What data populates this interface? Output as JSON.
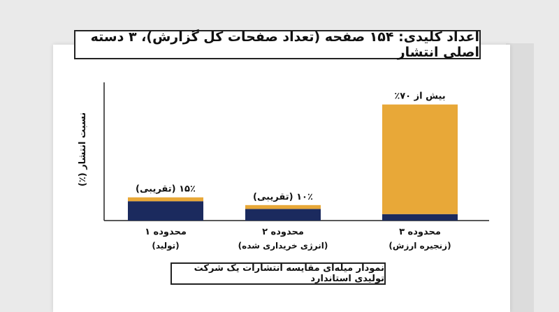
{
  "title": "اعداد کلیدی: ۱۵۴ صفحه (تعداد صفحات کل گزارش)، ۳ دسته اصلی انتشار",
  "caption": "نمودار میله‌ای مقایسه انتشارات یک شرکت تولیدی استاندارد",
  "colors": {
    "navy": "#1b2a5e",
    "gold": "#e8a838",
    "axis": "#222222",
    "text": "#111111"
  },
  "chart_data": {
    "type": "bar",
    "stacked": true,
    "ylabel": "نسبت انتشار (٪)",
    "xlabel": "",
    "ylim": [
      0,
      100
    ],
    "grid": false,
    "categories": [
      {
        "line1": "محدوده ۱",
        "line2": "(تولید)"
      },
      {
        "line1": "محدوده ۲",
        "line2": "(انرژی خریداری شده)"
      },
      {
        "line1": "محدوده ۳",
        "line2": "(زنجیره ارزش)"
      }
    ],
    "series": [
      {
        "color": "#1b2a5e",
        "values": [
          15,
          9,
          5
        ]
      },
      {
        "color": "#e8a838",
        "values": [
          3,
          3,
          85
        ]
      }
    ],
    "data_labels": [
      "۱۵٪ (تقریبی)",
      "۱۰٪ (تقریبی)",
      "بیش از ۷۰٪"
    ]
  }
}
